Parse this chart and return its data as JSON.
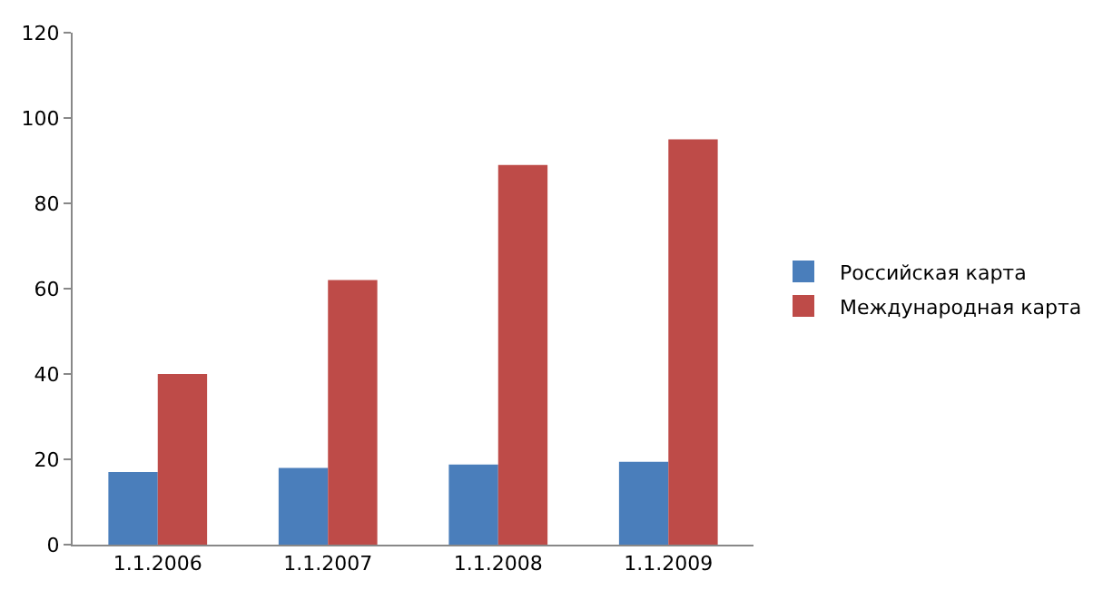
{
  "chart_data": {
    "type": "bar",
    "categories": [
      "1.1.2006",
      "1.1.2007",
      "1.1.2008",
      "1.1.2009"
    ],
    "series": [
      {
        "name": "Российская карта",
        "color": "#4a7ebb",
        "values": [
          17,
          18,
          18.8,
          19.4
        ]
      },
      {
        "name": "Международная карта",
        "color": "#be4b48",
        "values": [
          40,
          62,
          89,
          95
        ]
      }
    ],
    "ylim": [
      0,
      120
    ],
    "yticks": [
      0,
      20,
      40,
      60,
      80,
      100,
      120
    ],
    "grid": false,
    "legend": "right"
  }
}
